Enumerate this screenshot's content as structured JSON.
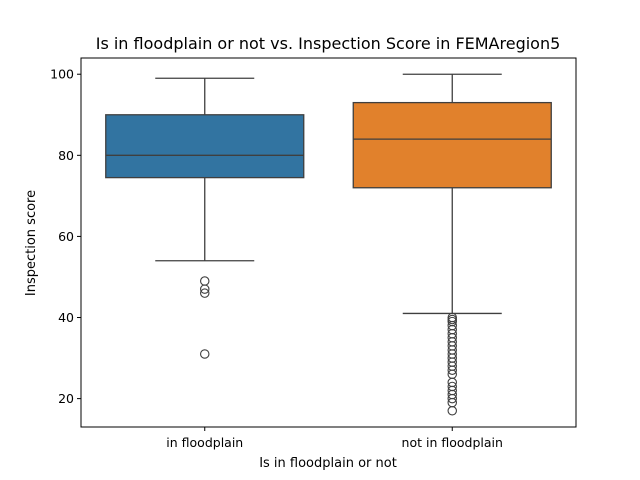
{
  "chart_data": {
    "type": "box",
    "title": "Is in floodplain or not vs. Inspection Score in FEMAregion5",
    "xlabel": "Is in floodplain or not",
    "ylabel": "Inspection score",
    "ylim": [
      13,
      104
    ],
    "yticks": [
      20,
      40,
      60,
      80,
      100
    ],
    "grid": false,
    "categories": [
      "in floodplain",
      "not in floodplain"
    ],
    "boxes": [
      {
        "category": "in floodplain",
        "color": "#3274a1",
        "whisker_low": 54,
        "q1": 74.5,
        "median": 80,
        "q3": 90,
        "whisker_high": 99,
        "outliers": [
          49,
          47,
          46,
          31
        ]
      },
      {
        "category": "not in floodplain",
        "color": "#e1812c",
        "whisker_low": 41,
        "q1": 72,
        "median": 84,
        "q3": 93,
        "whisker_high": 100,
        "outliers": [
          40,
          39.5,
          39,
          38,
          37,
          36,
          35,
          34,
          33,
          32,
          31,
          30,
          29,
          28,
          27,
          26,
          24,
          23,
          22,
          21,
          20,
          19,
          17
        ]
      }
    ]
  }
}
